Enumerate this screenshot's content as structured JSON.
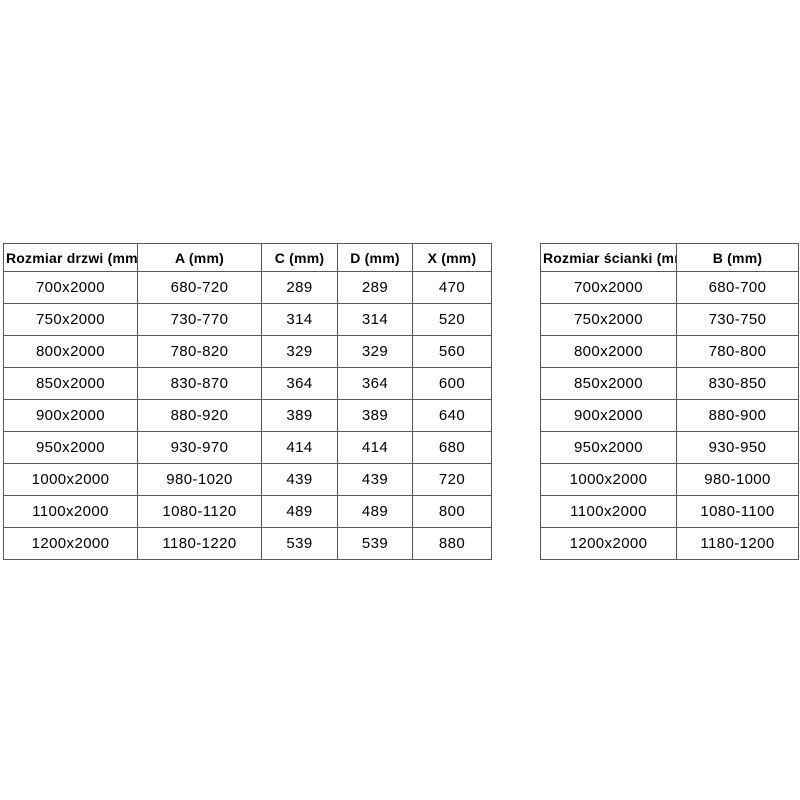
{
  "page": {
    "background": "#ffffff"
  },
  "colors": {
    "border": "#595959",
    "text": "#000000",
    "background": "#ffffff"
  },
  "tables": [
    {
      "name": "door-dimensions-table",
      "headers": [
        "Rozmiar drzwi (mm)",
        "A (mm)",
        "C (mm)",
        "D (mm)",
        "X (mm)"
      ],
      "rows": [
        [
          "700x2000",
          "680-720",
          "289",
          "289",
          "470"
        ],
        [
          "750x2000",
          "730-770",
          "314",
          "314",
          "520"
        ],
        [
          "800x2000",
          "780-820",
          "329",
          "329",
          "560"
        ],
        [
          "850x2000",
          "830-870",
          "364",
          "364",
          "600"
        ],
        [
          "900x2000",
          "880-920",
          "389",
          "389",
          "640"
        ],
        [
          "950x2000",
          "930-970",
          "414",
          "414",
          "680"
        ],
        [
          "1000x2000",
          "980-1020",
          "439",
          "439",
          "720"
        ],
        [
          "1100x2000",
          "1080-1120",
          "489",
          "489",
          "800"
        ],
        [
          "1200x2000",
          "1180-1220",
          "539",
          "539",
          "880"
        ]
      ]
    },
    {
      "name": "wall-dimensions-table",
      "headers": [
        "Rozmiar ścianki (mm)",
        "B (mm)"
      ],
      "rows": [
        [
          "700x2000",
          "680-700"
        ],
        [
          "750x2000",
          "730-750"
        ],
        [
          "800x2000",
          "780-800"
        ],
        [
          "850x2000",
          "830-850"
        ],
        [
          "900x2000",
          "880-900"
        ],
        [
          "950x2000",
          "930-950"
        ],
        [
          "1000x2000",
          "980-1000"
        ],
        [
          "1100x2000",
          "1080-1100"
        ],
        [
          "1200x2000",
          "1180-1200"
        ]
      ]
    }
  ]
}
